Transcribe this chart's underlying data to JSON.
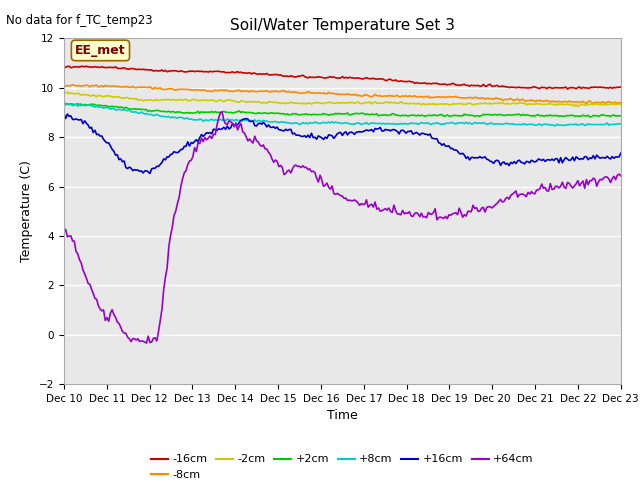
{
  "title": "Soil/Water Temperature Set 3",
  "xlabel": "Time",
  "ylabel": "Temperature (C)",
  "top_label": "No data for f_TC_temp23",
  "legend_label": "EE_met",
  "ylim": [
    -2,
    12
  ],
  "yticks": [
    -2,
    0,
    2,
    4,
    6,
    8,
    10,
    12
  ],
  "bg_color": "#ffffff",
  "plot_bg_color": "#e8e8e8",
  "grid_color": "#ffffff",
  "series": [
    {
      "label": "-16cm",
      "color": "#cc0000"
    },
    {
      "label": "-8cm",
      "color": "#ff8800"
    },
    {
      "label": "-2cm",
      "color": "#cccc00"
    },
    {
      "label": "+2cm",
      "color": "#00cc00"
    },
    {
      "label": "+8cm",
      "color": "#00cccc"
    },
    {
      "label": "+16cm",
      "color": "#0000cc"
    },
    {
      "label": "+64cm",
      "color": "#9900cc"
    }
  ],
  "xtick_labels": [
    "Dec 10",
    "Dec 11",
    "Dec 12",
    "Dec 13",
    "Dec 14",
    "Dec 15",
    "Dec 16",
    "Dec 17",
    "Dec 18",
    "Dec 19",
    "Dec 20",
    "Dec 21",
    "Dec 22",
    "Dec 23"
  ],
  "n_points": 325
}
